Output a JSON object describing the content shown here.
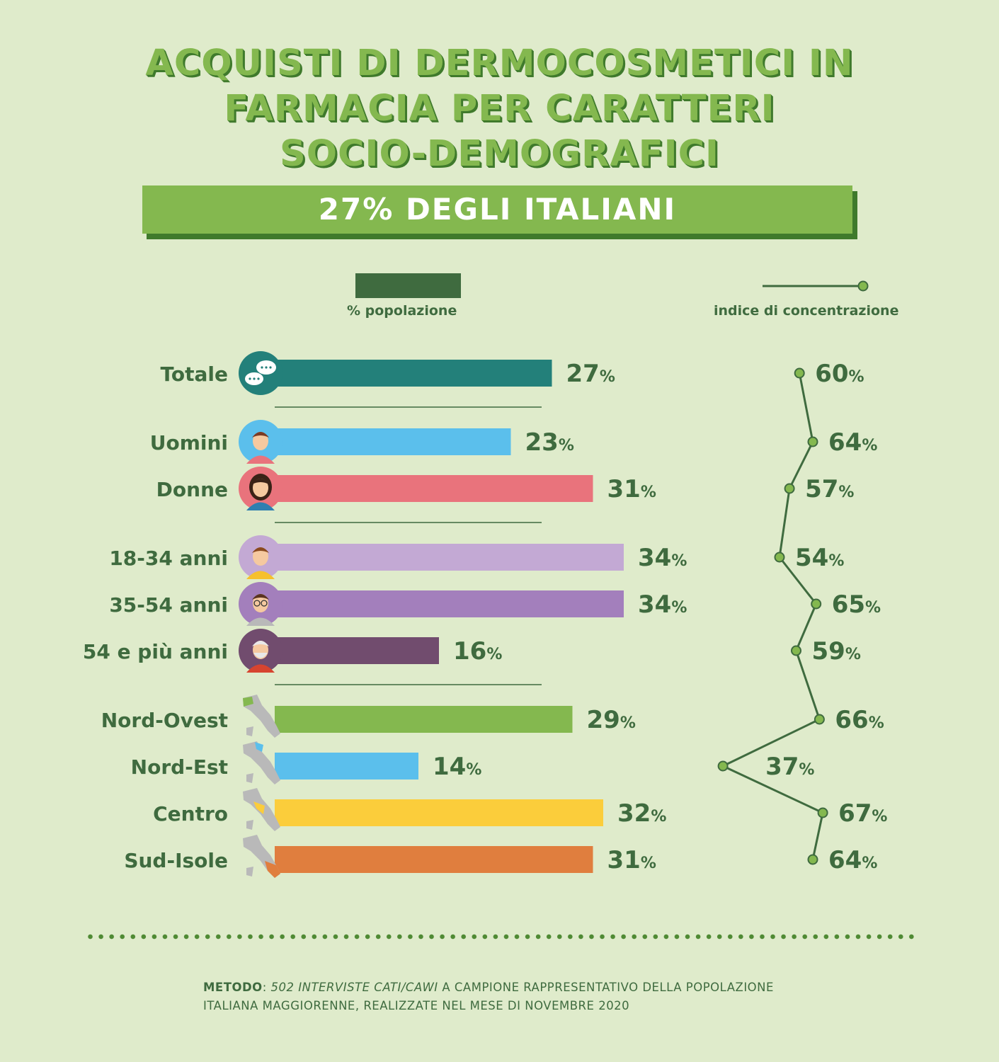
{
  "title_lines": [
    "ACQUISTI DI DERMOCOSMETICI IN",
    "FARMACIA PER CARATTERI",
    "SOCIO-DEMOGRAFICI"
  ],
  "banner": "27% DEGLI ITALIANI",
  "legend": {
    "bar_label": "% popolazione",
    "line_label": "indice di concentrazione",
    "bar_color": "#3f6b3f",
    "line_color": "#3f6b3f",
    "dot_color": "#84b84f"
  },
  "method": {
    "label": "METODO",
    "italic": "502 INTERVISTE CATI/CAWI",
    "text_line1": " A CAMPIONE RAPPRESENTATIVO DELLA POPOLAZIONE",
    "text_line2": "ITALIANA MAGGIORENNE, REALIZZATE NEL MESE DI NOVEMBRE 2020"
  },
  "chart_data": {
    "type": "bar",
    "categories": [
      "Totale",
      "Uomini",
      "Donne",
      "18-34 anni",
      "35-54 anni",
      "54 e più anni",
      "Nord-Ovest",
      "Nord-Est",
      "Centro",
      "Sud-Isole"
    ],
    "groups": [
      [
        0
      ],
      [
        1,
        2
      ],
      [
        3,
        4,
        5
      ],
      [
        6,
        7,
        8,
        9
      ]
    ],
    "series": [
      {
        "name": "% popolazione",
        "values": [
          27,
          23,
          31,
          34,
          34,
          16,
          29,
          14,
          32,
          31
        ]
      },
      {
        "name": "indice di concentrazione",
        "values": [
          60,
          64,
          57,
          54,
          65,
          59,
          66,
          37,
          67,
          64
        ]
      }
    ],
    "unit": "%",
    "bar_colors": [
      "#23807a",
      "#5bbfec",
      "#e9737c",
      "#c3a9d4",
      "#a37fbc",
      "#714c6e",
      "#84b84f",
      "#5bbfec",
      "#fbcd3b",
      "#e07e3e"
    ],
    "icons": [
      "speech-bubbles-icon",
      "man-avatar-icon",
      "woman-avatar-icon",
      "young-person-icon",
      "adult-man-glasses-icon",
      "elderly-man-icon",
      "italy-map-northwest-icon",
      "italy-map-northeast-icon",
      "italy-map-center-icon",
      "italy-map-south-icon"
    ]
  }
}
